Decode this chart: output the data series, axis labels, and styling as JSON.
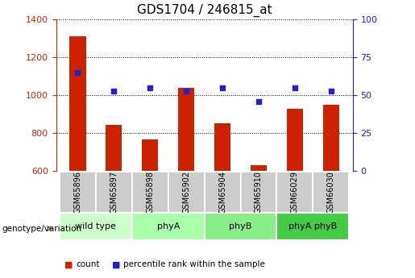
{
  "title": "GDS1704 / 246815_at",
  "samples": [
    "GSM65896",
    "GSM65897",
    "GSM65898",
    "GSM65902",
    "GSM65904",
    "GSM65910",
    "GSM66029",
    "GSM66030"
  ],
  "counts": [
    1310,
    845,
    765,
    1040,
    850,
    630,
    930,
    950
  ],
  "percentiles": [
    65,
    53,
    55,
    53,
    55,
    46,
    55,
    53
  ],
  "bar_color": "#cc2200",
  "dot_color": "#2222cc",
  "ylim_left": [
    600,
    1400
  ],
  "ylim_right": [
    0,
    100
  ],
  "yticks_left": [
    600,
    800,
    1000,
    1200,
    1400
  ],
  "yticks_right": [
    0,
    25,
    50,
    75,
    100
  ],
  "groups": [
    {
      "label": "wild type",
      "span": [
        0,
        2
      ],
      "color": "#ccffcc"
    },
    {
      "label": "phyA",
      "span": [
        2,
        4
      ],
      "color": "#aaffaa"
    },
    {
      "label": "phyB",
      "span": [
        4,
        6
      ],
      "color": "#88ee88"
    },
    {
      "label": "phyA phyB",
      "span": [
        6,
        8
      ],
      "color": "#44cc44"
    }
  ],
  "sample_row_color": "#cccccc",
  "legend_count_color": "#cc2200",
  "legend_dot_color": "#2222cc",
  "tick_fontsize": 8,
  "title_fontsize": 11
}
